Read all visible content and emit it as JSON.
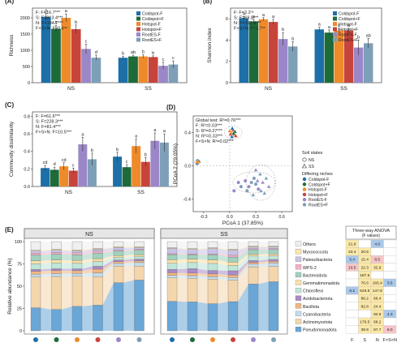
{
  "colors": {
    "series": [
      "#1d6fa8",
      "#1e6b3a",
      "#ef8a2a",
      "#c7443a",
      "#9b87c8",
      "#7d9fb8"
    ],
    "phyla": [
      "#efefef",
      "#fbe6b0",
      "#c8c3e6",
      "#f6b0c8",
      "#9fd1bd",
      "#fce0a8",
      "#bfe6d8",
      "#a98ac7",
      "#f1b682",
      "#c4dceb",
      "#f4d6ad",
      "#6aa6d6"
    ],
    "sig_pos": "#fbe8a6",
    "sig_blue": "#a9c8ea",
    "sig_pink": "#f6c5c9"
  },
  "legend_ab": [
    "Coldspot-F",
    "Coldspot+F",
    "Hotspot-F",
    "Hotspot+F",
    "RootES-F",
    "RootES+F"
  ],
  "chart_data": [
    {
      "panel": "(A)",
      "type": "bar",
      "ylabel": "Richness",
      "categories": [
        "NS",
        "SS"
      ],
      "yticks": [
        "0",
        "500",
        "1000",
        "1500",
        "2000"
      ],
      "ylim": [
        0,
        2300
      ],
      "series": [
        {
          "name": "Coldspot-F",
          "values": [
            2030,
            770
          ],
          "err": [
            110,
            45
          ],
          "letters": [
            "a",
            "b"
          ]
        },
        {
          "name": "Coldspot+F",
          "values": [
            1660,
            810
          ],
          "err": [
            100,
            40
          ],
          "letters": [
            "b",
            "ab"
          ]
        },
        {
          "name": "Hotspot-F",
          "values": [
            2000,
            810
          ],
          "err": [
            120,
            50
          ],
          "letters": [
            "a",
            "b"
          ]
        },
        {
          "name": "Hotspot+F",
          "values": [
            1650,
            790
          ],
          "err": [
            130,
            40
          ],
          "letters": [
            "b",
            "b"
          ]
        },
        {
          "name": "RootES-F",
          "values": [
            1040,
            520
          ],
          "err": [
            150,
            110
          ],
          "letters": [
            "c",
            "c"
          ]
        },
        {
          "name": "RootES+F",
          "values": [
            770,
            560
          ],
          "err": [
            80,
            110
          ],
          "letters": [
            "d",
            "c"
          ]
        }
      ],
      "stats": [
        "F: F=16.7***",
        "S: F=813.4***",
        "N: F=194.7***",
        "F×S×N: F=0.4ⁿˢ"
      ]
    },
    {
      "panel": "(B)",
      "type": "bar",
      "ylabel": "Shannon index",
      "categories": [
        "NS",
        "SS"
      ],
      "yticks": [
        "0",
        "2",
        "4",
        "6"
      ],
      "ylim": [
        0,
        7
      ],
      "series": [
        {
          "name": "Coldspot-F",
          "values": [
            6.05,
            5.0
          ],
          "err": [
            0.15,
            0.2
          ],
          "letters": [
            "a",
            "a"
          ]
        },
        {
          "name": "Coldspot+F",
          "values": [
            5.75,
            4.7
          ],
          "err": [
            0.2,
            0.25
          ],
          "letters": [
            "a",
            "a"
          ]
        },
        {
          "name": "Hotspot-F",
          "values": [
            5.95,
            4.9
          ],
          "err": [
            0.15,
            0.2
          ],
          "letters": [
            "a",
            "a"
          ]
        },
        {
          "name": "Hotspot+F",
          "values": [
            5.7,
            4.9
          ],
          "err": [
            0.25,
            0.2
          ],
          "letters": [
            "a",
            "a"
          ]
        },
        {
          "name": "RootES-F",
          "values": [
            4.1,
            3.3
          ],
          "err": [
            0.6,
            0.7
          ],
          "letters": [
            "b",
            "b"
          ]
        },
        {
          "name": "RootES+F",
          "values": [
            3.4,
            3.7
          ],
          "err": [
            0.45,
            0.45
          ],
          "letters": [
            "b",
            "ab"
          ]
        }
      ],
      "stats": [
        "F: F=2.2ⁿˢ",
        "S: F=69.8***",
        "N: F=191.9***",
        "F×S×N: F=1.7ⁿˢ"
      ]
    },
    {
      "panel": "(C)",
      "type": "bar",
      "ylabel": "Community dissimilarity",
      "categories": [
        "NS",
        "SS"
      ],
      "yticks": [
        "0.0",
        "0.2",
        "0.4",
        "0.6",
        "0.8"
      ],
      "ylim": [
        0,
        0.85
      ],
      "series": [
        {
          "name": "Coldspot-F",
          "values": [
            0.21,
            0.34
          ],
          "err": [
            0.03,
            0.05
          ],
          "letters": [
            "cd",
            "b"
          ]
        },
        {
          "name": "Coldspot+F",
          "values": [
            0.19,
            0.22
          ],
          "err": [
            0.03,
            0.03
          ],
          "letters": [
            "d",
            "c"
          ]
        },
        {
          "name": "Hotspot-F",
          "values": [
            0.23,
            0.46
          ],
          "err": [
            0.04,
            0.08
          ],
          "letters": [
            "cd",
            "a"
          ]
        },
        {
          "name": "Hotspot+F",
          "values": [
            0.18,
            0.28
          ],
          "err": [
            0.03,
            0.05
          ],
          "letters": [
            "c",
            "b"
          ]
        },
        {
          "name": "RootES-F",
          "values": [
            0.48,
            0.52
          ],
          "err": [
            0.08,
            0.09
          ],
          "letters": [
            "a",
            "a"
          ]
        },
        {
          "name": "RootES+F",
          "values": [
            0.31,
            0.5
          ],
          "err": [
            0.07,
            0.1
          ],
          "letters": [
            "b",
            "a"
          ]
        }
      ],
      "stats": [
        "F: F=61.6***",
        "S: F=228.3***",
        "N: F=81.4***",
        "F×S×N: F=10.5***"
      ]
    },
    {
      "panel": "(D)",
      "type": "scatter",
      "xlabel": "PCoA 1 (37.85%)",
      "ylabel": "PCoA 2 (29.05%)",
      "xticks": [
        "-0.3",
        "0.0",
        "0.3",
        "0.6"
      ],
      "yticks": [
        "-0.4",
        "0.0",
        "0.4"
      ],
      "xlim": [
        -0.42,
        0.72
      ],
      "ylim": [
        -0.55,
        0.6
      ],
      "stats": [
        "Global test: R²=0.76***",
        "F: R²=0.03***",
        "S: R²=0.27***",
        "N: R²=0.33***",
        "F×S×N: R²=0.02***"
      ],
      "shape_title": "Soil states",
      "shapes": [
        "NS",
        "SS"
      ],
      "niche_title": "Differing niches",
      "points": [
        {
          "x": -0.37,
          "y": 0.06,
          "s": "NS",
          "c": 0
        },
        {
          "x": -0.365,
          "y": 0.04,
          "s": "NS",
          "c": 1
        },
        {
          "x": -0.375,
          "y": 0.03,
          "s": "NS",
          "c": 0
        },
        {
          "x": -0.36,
          "y": 0.05,
          "s": "NS",
          "c": 1
        },
        {
          "x": -0.37,
          "y": 0.045,
          "s": "NS",
          "c": 2
        },
        {
          "x": 0.02,
          "y": 0.4,
          "s": "SS",
          "c": 2
        },
        {
          "x": 0.04,
          "y": 0.43,
          "s": "SS",
          "c": 3
        },
        {
          "x": 0.05,
          "y": 0.37,
          "s": "SS",
          "c": 2
        },
        {
          "x": 0.01,
          "y": 0.38,
          "s": "SS",
          "c": 3
        },
        {
          "x": 0.06,
          "y": 0.41,
          "s": "SS",
          "c": 1
        },
        {
          "x": 0.03,
          "y": 0.45,
          "s": "SS",
          "c": 0
        },
        {
          "x": 0.07,
          "y": 0.36,
          "s": "SS",
          "c": 3
        },
        {
          "x": 0.0,
          "y": 0.42,
          "s": "SS",
          "c": 2
        },
        {
          "x": 0.045,
          "y": 0.39,
          "s": "SS",
          "c": 1
        },
        {
          "x": 0.025,
          "y": 0.35,
          "s": "SS",
          "c": 0
        },
        {
          "x": 0.25,
          "y": -0.2,
          "s": "NS",
          "c": 5
        },
        {
          "x": 0.28,
          "y": -0.15,
          "s": "NS",
          "c": 5
        },
        {
          "x": 0.22,
          "y": -0.25,
          "s": "NS",
          "c": 4
        },
        {
          "x": 0.3,
          "y": -0.22,
          "s": "NS",
          "c": 5
        },
        {
          "x": 0.18,
          "y": -0.18,
          "s": "NS",
          "c": 4
        },
        {
          "x": 0.2,
          "y": -0.3,
          "s": "NS",
          "c": 5
        },
        {
          "x": 0.33,
          "y": -0.28,
          "s": "NS",
          "c": 4
        },
        {
          "x": 0.13,
          "y": -0.25,
          "s": "NS",
          "c": 5
        },
        {
          "x": 0.35,
          "y": -0.1,
          "s": "SS",
          "c": 5
        },
        {
          "x": 0.38,
          "y": -0.2,
          "s": "SS",
          "c": 4
        },
        {
          "x": 0.42,
          "y": -0.15,
          "s": "SS",
          "c": 5
        },
        {
          "x": 0.3,
          "y": -0.05,
          "s": "SS",
          "c": 4
        },
        {
          "x": 0.36,
          "y": -0.3,
          "s": "SS",
          "c": 5
        },
        {
          "x": 0.45,
          "y": -0.25,
          "s": "SS",
          "c": 4
        },
        {
          "x": 0.27,
          "y": -0.35,
          "s": "SS",
          "c": 5
        },
        {
          "x": 0.4,
          "y": -0.33,
          "s": "SS",
          "c": 5
        },
        {
          "x": 0.32,
          "y": -0.18,
          "s": "SS",
          "c": 4
        },
        {
          "x": 0.1,
          "y": -0.2,
          "s": "NS",
          "c": 4
        },
        {
          "x": 0.05,
          "y": -0.3,
          "s": "NS",
          "c": 4
        }
      ]
    },
    {
      "panel": "(E)",
      "type": "stacked-bar",
      "ylabel": "Relative abundance (%)",
      "yticks": [
        "0",
        "25",
        "50",
        "75",
        "100"
      ],
      "groups": [
        "NS",
        "SS"
      ],
      "phyla": [
        "Others",
        "Myxococcota",
        "Patescibacteria",
        "WPS-2",
        "Bacteroidota",
        "Gemmatimonadota",
        "Chloroflexi",
        "Acidobacteriota",
        "Bacillota",
        "Cyanobacteria",
        "Actinomycetota",
        "Pseudomonadota"
      ],
      "bars": [
        [
          9,
          1,
          2,
          2,
          6,
          3,
          6,
          2,
          3,
          3,
          32,
          24
        ],
        [
          8,
          1,
          2,
          2,
          6,
          3,
          6,
          2,
          3,
          3,
          34,
          22
        ],
        [
          9,
          1,
          2,
          2,
          6,
          3,
          6,
          2,
          3,
          3,
          32,
          26
        ],
        [
          7,
          1,
          2,
          2,
          6,
          3,
          5,
          3,
          4,
          4,
          30,
          27
        ],
        [
          6,
          1,
          3,
          1,
          5,
          2,
          3,
          2,
          2,
          3,
          19,
          55
        ],
        [
          6,
          1,
          2,
          1,
          5,
          2,
          3,
          2,
          2,
          4,
          16,
          58
        ],
        [
          7,
          1,
          6,
          1,
          6,
          4,
          7,
          4,
          3,
          3,
          27,
          34
        ],
        [
          8,
          1,
          5,
          1,
          5,
          4,
          7,
          5,
          3,
          3,
          27,
          33
        ],
        [
          7,
          1,
          6,
          1,
          6,
          4,
          8,
          4,
          3,
          3,
          28,
          31
        ],
        [
          9,
          1,
          6,
          2,
          6,
          4,
          6,
          5,
          3,
          3,
          25,
          34
        ],
        [
          5,
          1,
          2,
          1,
          5,
          2,
          5,
          2,
          2,
          3,
          19,
          52
        ],
        [
          5,
          1,
          2,
          1,
          5,
          2,
          4,
          2,
          2,
          4,
          17,
          55
        ]
      ],
      "anova_title": "Three-way ANOVA",
      "anova_subtitle": "(F values)",
      "anova_cols": [
        "F",
        "S",
        "N",
        "F×S×N"
      ],
      "anova": [
        [
          "21.9",
          "",
          "4.0",
          ""
        ],
        [
          "23.4",
          "20.6",
          "",
          ""
        ],
        [
          "5.4",
          "15.4",
          "8.5",
          ""
        ],
        [
          "10.5",
          "22.3",
          "32.9",
          ""
        ],
        [
          "",
          "187.5",
          "",
          ""
        ],
        [
          "",
          "76.5",
          "165.4",
          "3.5"
        ],
        [
          "8.2",
          "625.8",
          "147.8",
          ""
        ],
        [
          "",
          "86.2",
          "66.4",
          ""
        ],
        [
          "",
          "82.8",
          "24.4",
          ""
        ],
        [
          "",
          "",
          "92.9",
          "4.3"
        ],
        [
          "",
          "176.5",
          "68.2",
          ""
        ],
        [
          "",
          "39.9",
          "87.7",
          "8.0"
        ]
      ],
      "anova_color": [
        [
          "pos",
          "",
          "blue",
          ""
        ],
        [
          "pos",
          "pos",
          "",
          ""
        ],
        [
          "blue",
          "pos",
          "pink",
          ""
        ],
        [
          "pink",
          "pos",
          "pos",
          ""
        ],
        [
          "",
          "pos",
          "",
          ""
        ],
        [
          "",
          "pos",
          "pos",
          "blue"
        ],
        [
          "blue",
          "pos",
          "pos",
          ""
        ],
        [
          "",
          "pos",
          "pos",
          ""
        ],
        [
          "",
          "pos",
          "pos",
          ""
        ],
        [
          "",
          "",
          "pos",
          "blue"
        ],
        [
          "",
          "pos",
          "pos",
          ""
        ],
        [
          "",
          "pos",
          "pos",
          "pink"
        ]
      ]
    }
  ]
}
